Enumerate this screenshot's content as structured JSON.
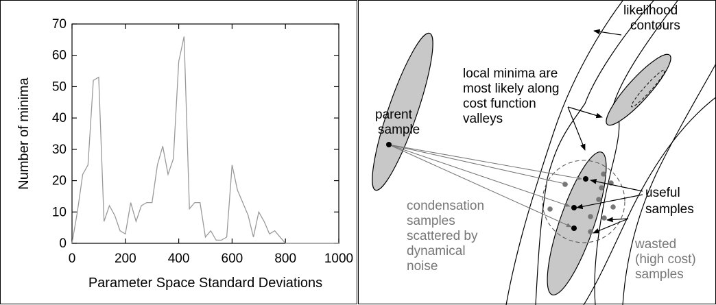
{
  "chart_data": {
    "type": "line",
    "xlabel": "Parameter Space Standard Deviations",
    "ylabel": "Number of minima",
    "xlim": [
      0,
      1000
    ],
    "ylim": [
      0,
      70
    ],
    "x_ticks": [
      "0",
      "200",
      "400",
      "600",
      "800",
      "1000"
    ],
    "y_ticks": [
      "0",
      "10",
      "20",
      "30",
      "40",
      "50",
      "60",
      "70"
    ],
    "grid": false,
    "series": [
      {
        "x": [
          0,
          20,
          40,
          60,
          80,
          100,
          120,
          140,
          160,
          180,
          200,
          220,
          240,
          260,
          280,
          300,
          320,
          340,
          360,
          380,
          400,
          420,
          440,
          460,
          480,
          500,
          520,
          540,
          560,
          580,
          600,
          620,
          640,
          660,
          680,
          700,
          720,
          740,
          760,
          780,
          800,
          820,
          840,
          860,
          880,
          900,
          920,
          940,
          960,
          980,
          1000
        ],
        "values": [
          0,
          10,
          22,
          25,
          52,
          53,
          7,
          12,
          9,
          4,
          3,
          13,
          7,
          12,
          13,
          13,
          25,
          31,
          22,
          27,
          58,
          66,
          11,
          13,
          13,
          2,
          4,
          1,
          1,
          2,
          25,
          17,
          13,
          9,
          2,
          10,
          7,
          3,
          4,
          2,
          0,
          0,
          0,
          0,
          0,
          0,
          0,
          0,
          0,
          0,
          0
        ]
      }
    ],
    "color": "#999999"
  },
  "diagram": {
    "labels": {
      "likelihood": [
        "likelihood",
        "contours"
      ],
      "local_minima": [
        "local minima are",
        "most likely along",
        "cost function",
        "valleys"
      ],
      "parent": [
        "parent",
        "sample"
      ],
      "useful": [
        "useful",
        "samples"
      ],
      "condensation": [
        "condensation",
        "samples",
        "scattered by",
        "dynamical",
        "noise"
      ],
      "wasted": [
        "wasted",
        "(high cost)",
        "samples"
      ]
    },
    "colors": {
      "ellipse_fill": "#c8c8c8",
      "gray_text": "#777777",
      "gray_dot": "#777777"
    }
  }
}
